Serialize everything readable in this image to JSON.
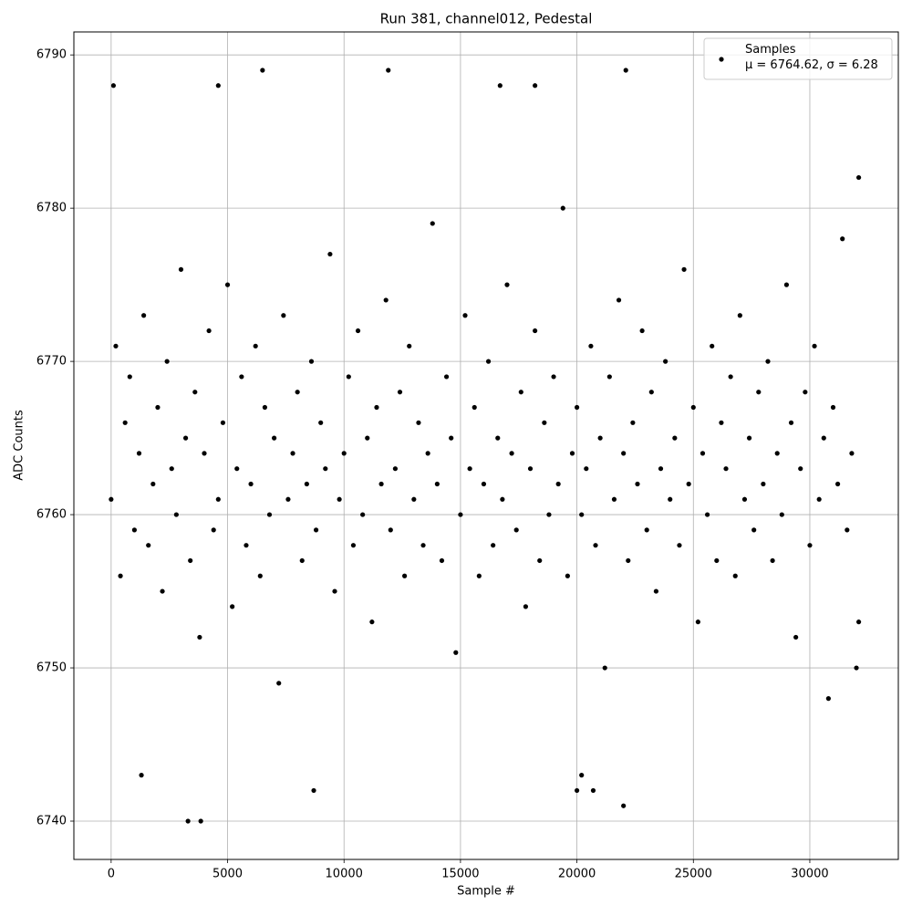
{
  "chart_data": {
    "type": "scatter",
    "title": "Run 381, channel012, Pedestal",
    "xlabel": "Sample #",
    "ylabel": "ADC Counts",
    "xlim": [
      -1600,
      33800
    ],
    "ylim": [
      6737.5,
      6791.5
    ],
    "xticks": [
      0,
      5000,
      10000,
      15000,
      20000,
      25000,
      30000
    ],
    "yticks": [
      6740,
      6750,
      6760,
      6770,
      6780,
      6790
    ],
    "grid": true,
    "legend": "upper right",
    "series": [
      {
        "name": "Samples\nμ = 6764.62, σ = 6.28",
        "color": "#000000",
        "x": [
          0,
          200,
          400,
          600,
          800,
          1000,
          1200,
          1400,
          1600,
          1800,
          2000,
          2200,
          2400,
          2600,
          2800,
          3000,
          3200,
          3400,
          3600,
          3800,
          4000,
          4200,
          4400,
          4600,
          4800,
          5000,
          5200,
          5400,
          5600,
          5800,
          6000,
          6200,
          6400,
          6600,
          6800,
          7000,
          7200,
          7400,
          7600,
          7800,
          8000,
          8200,
          8400,
          8600,
          8800,
          9000,
          9200,
          9400,
          9600,
          9800,
          10000,
          10200,
          10400,
          10600,
          10800,
          11000,
          11200,
          11400,
          11600,
          11800,
          12000,
          12200,
          12400,
          12600,
          12800,
          13000,
          13200,
          13400,
          13600,
          13800,
          14000,
          14200,
          14400,
          14600,
          14800,
          15000,
          15200,
          15400,
          15600,
          15800,
          16000,
          16200,
          16400,
          16600,
          16800,
          17000,
          17200,
          17400,
          17600,
          17800,
          18000,
          18200,
          18400,
          18600,
          18800,
          19000,
          19200,
          19400,
          19600,
          19800,
          20000,
          20200,
          20400,
          20600,
          20800,
          21000,
          21200,
          21400,
          21600,
          21800,
          22000,
          22200,
          22400,
          22600,
          22800,
          23000,
          23200,
          23400,
          23600,
          23800,
          24000,
          24200,
          24400,
          24600,
          24800,
          25000,
          25200,
          25400,
          25600,
          25800,
          26000,
          26200,
          26400,
          26600,
          26800,
          27000,
          27200,
          27400,
          27600,
          27800,
          28000,
          28200,
          28400,
          28600,
          28800,
          29000,
          29200,
          29400,
          29600,
          29800,
          30000,
          30200,
          30400,
          30600,
          30800,
          31000,
          31200,
          31400,
          31600,
          31800,
          3300,
          3850,
          8700,
          22000,
          1300,
          20000,
          20200,
          20700,
          6500,
          11900,
          22100,
          100,
          4600,
          16700,
          18200,
          32100,
          32100,
          32000
        ],
        "values": [
          6761,
          6771,
          6756,
          6766,
          6769,
          6759,
          6764,
          6773,
          6758,
          6762,
          6767,
          6755,
          6770,
          6763,
          6760,
          6776,
          6765,
          6757,
          6768,
          6752,
          6764,
          6772,
          6759,
          6761,
          6766,
          6775,
          6754,
          6763,
          6769,
          6758,
          6762,
          6771,
          6756,
          6767,
          6760,
          6765,
          6749,
          6773,
          6761,
          6764,
          6768,
          6757,
          6762,
          6770,
          6759,
          6766,
          6763,
          6777,
          6755,
          6761,
          6764,
          6769,
          6758,
          6772,
          6760,
          6765,
          6753,
          6767,
          6762,
          6774,
          6759,
          6763,
          6768,
          6756,
          6771,
          6761,
          6766,
          6758,
          6764,
          6779,
          6762,
          6757,
          6769,
          6765,
          6751,
          6760,
          6773,
          6763,
          6767,
          6756,
          6762,
          6770,
          6758,
          6765,
          6761,
          6775,
          6764,
          6759,
          6768,
          6754,
          6763,
          6772,
          6757,
          6766,
          6760,
          6769,
          6762,
          6780,
          6756,
          6764,
          6767,
          6760,
          6763,
          6771,
          6758,
          6765,
          6750,
          6769,
          6761,
          6774,
          6764,
          6757,
          6766,
          6762,
          6772,
          6759,
          6768,
          6755,
          6763,
          6770,
          6761,
          6765,
          6758,
          6776,
          6762,
          6767,
          6753,
          6764,
          6760,
          6771,
          6757,
          6766,
          6763,
          6769,
          6756,
          6773,
          6761,
          6765,
          6759,
          6768,
          6762,
          6770,
          6757,
          6764,
          6760,
          6775,
          6766,
          6752,
          6763,
          6768,
          6758,
          6771,
          6761,
          6765,
          6748,
          6767,
          6762,
          6778,
          6759,
          6764,
          6740,
          6740,
          6742,
          6741,
          6743,
          6742,
          6743,
          6742,
          6789,
          6789,
          6789,
          6788,
          6788,
          6788,
          6788,
          6782,
          6753,
          6750
        ]
      }
    ]
  }
}
